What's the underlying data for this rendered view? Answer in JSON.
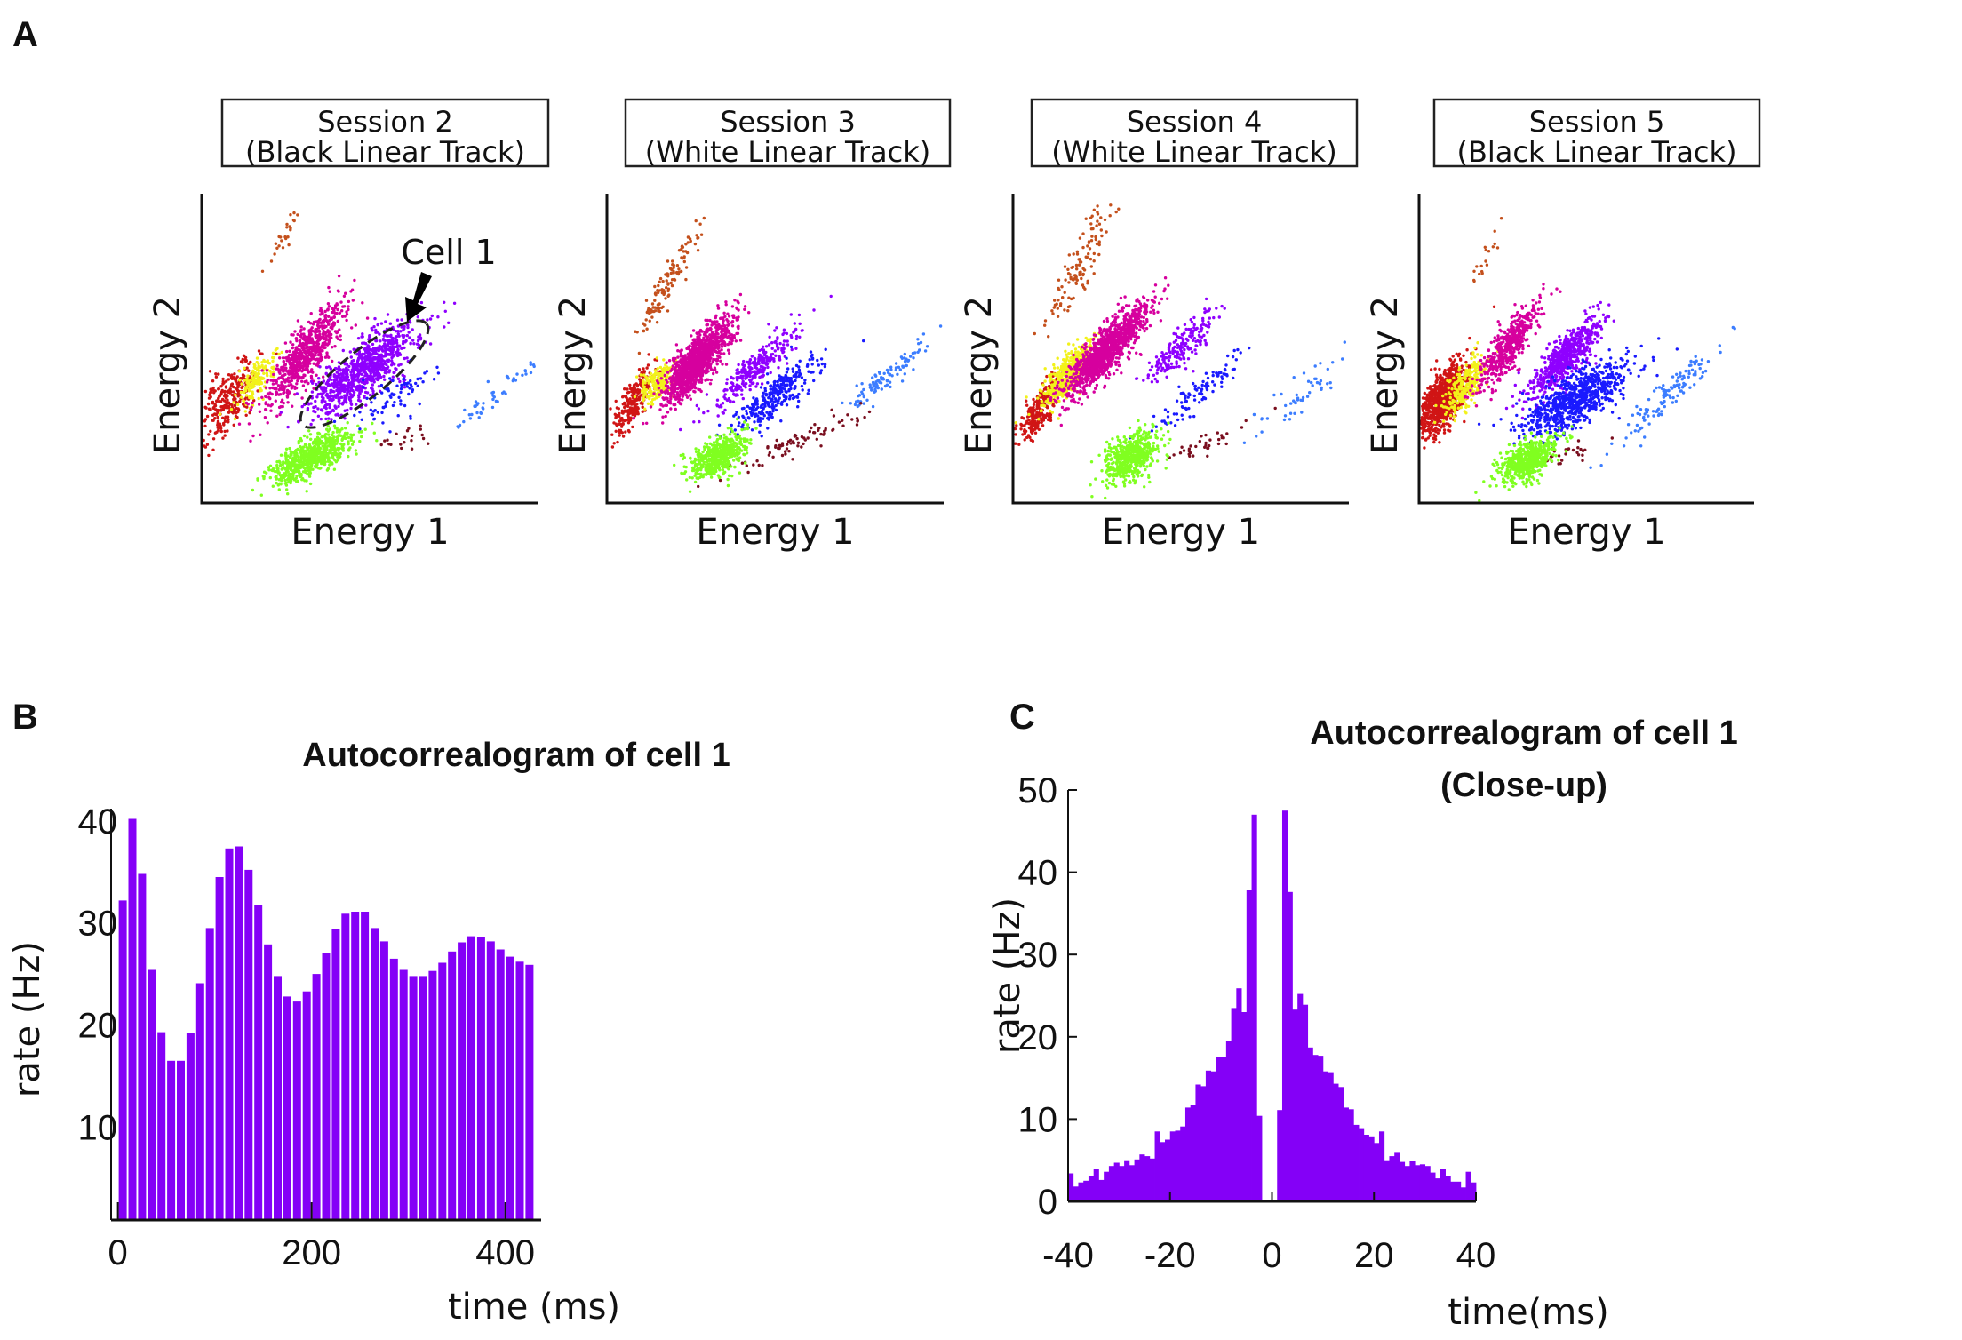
{
  "panel_letters": {
    "a": "A",
    "b": "B",
    "c": "C"
  },
  "chart_data": [
    {
      "type": "scatter",
      "panel": "A",
      "xlabel": "Energy 1",
      "ylabel": "Energy 2",
      "grid": false,
      "annotation": {
        "label": "Cell 1",
        "target_cluster": "purple"
      },
      "sessions": [
        {
          "title_line1": "Session 2",
          "title_line2": "(Black Linear Track)",
          "clusters": [
            {
              "color": "#c4501c",
              "center": [
                24.5,
                85
              ],
              "spread": [
                8,
                1.2
              ],
              "angle": 61,
              "n": 25
            },
            {
              "color": "#d01515",
              "center": [
                7.7,
                33
              ],
              "spread": [
                7,
                3
              ],
              "angle": 62,
              "n": 300
            },
            {
              "color": "#f2f21a",
              "center": [
                16.5,
                40
              ],
              "spread": [
                5,
                2
              ],
              "angle": 58,
              "n": 150
            },
            {
              "color": "#d6009e",
              "center": [
                30.6,
                47.7
              ],
              "spread": [
                10,
                3
              ],
              "angle": 57,
              "n": 700
            },
            {
              "color": "#8f00ff",
              "center": [
                48,
                43
              ],
              "spread": [
                10,
                3.5
              ],
              "angle": 41,
              "n": 900
            },
            {
              "color": "#1a1aff",
              "center": [
                56,
                34
              ],
              "spread": [
                7,
                3
              ],
              "angle": 35,
              "n": 80
            },
            {
              "color": "#3c7dff",
              "center": [
                87,
                35
              ],
              "spread": [
                9,
                1.5
              ],
              "angle": 43,
              "n": 50
            },
            {
              "color": "#7a0f1f",
              "center": [
                59,
                21
              ],
              "spread": [
                5,
                2
              ],
              "angle": 20,
              "n": 20
            },
            {
              "color": "#80ff20",
              "center": [
                33,
                15
              ],
              "spread": [
                7,
                2.5
              ],
              "angle": 32,
              "n": 700
            }
          ]
        },
        {
          "title_line1": "Session 3",
          "title_line2": "(White Linear Track)",
          "clusters": [
            {
              "color": "#c4501c",
              "center": [
                18.5,
                71.5
              ],
              "spread": [
                10,
                1.5
              ],
              "angle": 64,
              "n": 120
            },
            {
              "color": "#d01515",
              "center": [
                8,
                33
              ],
              "spread": [
                6,
                1.8
              ],
              "angle": 62,
              "n": 250
            },
            {
              "color": "#f2f21a",
              "center": [
                15,
                38.6
              ],
              "spread": [
                3.5,
                2
              ],
              "angle": 55,
              "n": 200
            },
            {
              "color": "#d6009e",
              "center": [
                27,
                46
              ],
              "spread": [
                8,
                2.5
              ],
              "angle": 57,
              "n": 1200
            },
            {
              "color": "#8f00ff",
              "center": [
                44.5,
                44
              ],
              "spread": [
                9,
                2
              ],
              "angle": 47,
              "n": 300
            },
            {
              "color": "#1a1aff",
              "center": [
                50,
                34.8
              ],
              "spread": [
                8,
                2.5
              ],
              "angle": 42,
              "n": 300
            },
            {
              "color": "#3c7dff",
              "center": [
                83.7,
                41
              ],
              "spread": [
                8,
                2
              ],
              "angle": 42,
              "n": 100
            },
            {
              "color": "#7a0f1f",
              "center": [
                57,
                20
              ],
              "spread": [
                11,
                1.8
              ],
              "angle": 26,
              "n": 80
            },
            {
              "color": "#80ff20",
              "center": [
                33,
                15
              ],
              "spread": [
                5,
                2.5
              ],
              "angle": 35,
              "n": 500
            }
          ]
        },
        {
          "title_line1": "Session 4",
          "title_line2": "(White Linear Track)",
          "clusters": [
            {
              "color": "#c4501c",
              "center": [
                20,
                77
              ],
              "spread": [
                11,
                2
              ],
              "angle": 65,
              "n": 120
            },
            {
              "color": "#d01515",
              "center": [
                8,
                30.7
              ],
              "spread": [
                5.5,
                1.8
              ],
              "angle": 62,
              "n": 250
            },
            {
              "color": "#f2f21a",
              "center": [
                16.7,
                42
              ],
              "spread": [
                6,
                2
              ],
              "angle": 55,
              "n": 500
            },
            {
              "color": "#d6009e",
              "center": [
                28,
                49.6
              ],
              "spread": [
                9,
                2.5
              ],
              "angle": 51,
              "n": 1200
            },
            {
              "color": "#8f00ff",
              "center": [
                50,
                50
              ],
              "spread": [
                7.5,
                2
              ],
              "angle": 48,
              "n": 200
            },
            {
              "color": "#1a1aff",
              "center": [
                55.5,
                36
              ],
              "spread": [
                8,
                2
              ],
              "angle": 44,
              "n": 100
            },
            {
              "color": "#3c7dff",
              "center": [
                86,
                36
              ],
              "spread": [
                10,
                2.5
              ],
              "angle": 46,
              "n": 50
            },
            {
              "color": "#7a0f1f",
              "center": [
                57,
                19
              ],
              "spread": [
                9,
                1.5
              ],
              "angle": 27,
              "n": 35
            },
            {
              "color": "#80ff20",
              "center": [
                35,
                15
              ],
              "spread": [
                5,
                3
              ],
              "angle": 45,
              "n": 600
            }
          ]
        },
        {
          "title_line1": "Session 5",
          "title_line2": "(Black Linear Track)",
          "clusters": [
            {
              "color": "#c4501c",
              "center": [
                20,
                80.7
              ],
              "spread": [
                6,
                1.5
              ],
              "angle": 60,
              "n": 18
            },
            {
              "color": "#d01515",
              "center": [
                7.3,
                34
              ],
              "spread": [
                6,
                2.5
              ],
              "angle": 64,
              "n": 900
            },
            {
              "color": "#f2f21a",
              "center": [
                13.5,
                37.4
              ],
              "spread": [
                5.5,
                2.2
              ],
              "angle": 60,
              "n": 250
            },
            {
              "color": "#d6009e",
              "center": [
                26.4,
                50
              ],
              "spread": [
                8,
                2.2
              ],
              "angle": 59,
              "n": 500
            },
            {
              "color": "#8f00ff",
              "center": [
                43.6,
                47
              ],
              "spread": [
                8,
                2.5
              ],
              "angle": 50,
              "n": 600
            },
            {
              "color": "#1a1aff",
              "center": [
                47,
                33.5
              ],
              "spread": [
                9,
                3.5
              ],
              "angle": 34,
              "n": 800
            },
            {
              "color": "#3c7dff",
              "center": [
                76,
                36.4
              ],
              "spread": [
                11,
                2
              ],
              "angle": 45,
              "n": 130
            },
            {
              "color": "#7a0f1f",
              "center": [
                45,
                16
              ],
              "spread": [
                5,
                1.5
              ],
              "angle": 22,
              "n": 25
            },
            {
              "color": "#80ff20",
              "center": [
                32.6,
                14
              ],
              "spread": [
                5,
                2.5
              ],
              "angle": 40,
              "n": 600
            }
          ]
        }
      ]
    },
    {
      "type": "bar",
      "panel": "B",
      "title": "Autocorrealogram of cell 1",
      "xlabel": "time (ms)",
      "ylabel": "rate (Hz)",
      "color": "#8400f7",
      "grid": false,
      "xlim": [
        -7,
        437
      ],
      "ylim": [
        0.9,
        41.2
      ],
      "xticks": [
        0,
        200,
        400
      ],
      "xtick_labels": [
        "0",
        "200",
        "400"
      ],
      "yticks": [
        10,
        20,
        30,
        40
      ],
      "ytick_labels": [
        "10",
        "20",
        "30",
        "40"
      ],
      "bin_width": 10,
      "x": [
        5,
        15,
        25,
        35,
        45,
        55,
        65,
        75,
        85,
        95,
        105,
        115,
        125,
        135,
        145,
        155,
        165,
        175,
        185,
        195,
        205,
        215,
        225,
        235,
        245,
        255,
        265,
        275,
        285,
        295,
        305,
        315,
        325,
        335,
        345,
        355,
        365,
        375,
        385,
        395,
        405,
        415,
        425
      ],
      "values": [
        32.2,
        40.2,
        34.8,
        25.4,
        19.3,
        16.5,
        16.5,
        19.2,
        24.1,
        29.5,
        34.5,
        37.3,
        37.5,
        35.2,
        31.8,
        27.9,
        24.8,
        22.8,
        22.3,
        23.3,
        25.0,
        27.1,
        29.4,
        30.9,
        31.1,
        31.1,
        29.5,
        28.2,
        26.5,
        25.4,
        24.8,
        24.8,
        25.3,
        26.1,
        27.2,
        28.1,
        28.7,
        28.6,
        28.2,
        27.4,
        26.7,
        26.2,
        25.9
      ]
    },
    {
      "type": "bar",
      "panel": "C",
      "title_line1": "Autocorrealogram of cell 1",
      "title_line2": "(Close-up)",
      "xlabel": "time(ms)",
      "ylabel": "rate (Hz)",
      "color": "#8400f7",
      "grid": false,
      "xlim": [
        -40,
        40
      ],
      "ylim": [
        0,
        50
      ],
      "xticks": [
        -40,
        -20,
        0,
        20,
        40
      ],
      "xtick_labels": [
        "-40",
        "-20",
        "0",
        "20",
        "40"
      ],
      "yticks": [
        0,
        10,
        20,
        30,
        40,
        50
      ],
      "ytick_labels": [
        "0",
        "10",
        "20",
        "30",
        "40",
        "50"
      ],
      "bin_width": 1,
      "x_start": -40,
      "values": [
        3.4,
        1.8,
        2.3,
        2.5,
        3.1,
        4.0,
        2.6,
        3.6,
        4.3,
        4.7,
        4.3,
        5.0,
        4.4,
        5.1,
        5.7,
        5.5,
        5.2,
        8.5,
        7.2,
        7.5,
        8.5,
        8.6,
        9.1,
        11.4,
        11.7,
        14.2,
        14.0,
        15.9,
        15.8,
        17.6,
        17.5,
        19.5,
        23.5,
        25.9,
        23.0,
        37.8,
        47.0,
        10.4,
        0.2,
        0.2,
        0.2,
        11.1,
        47.5,
        37.6,
        23.3,
        25.2,
        23.9,
        18.7,
        17.8,
        17.7,
        15.8,
        15.7,
        14.3,
        13.9,
        11.4,
        11.2,
        9.3,
        8.9,
        8.1,
        7.9,
        7.1,
        8.5,
        5.0,
        5.5,
        6.0,
        4.8,
        4.3,
        4.9,
        4.4,
        4.5,
        4.3,
        3.5,
        2.8,
        3.9,
        3.1,
        2.4,
        2.4,
        1.7,
        3.6,
        2.3
      ]
    }
  ]
}
